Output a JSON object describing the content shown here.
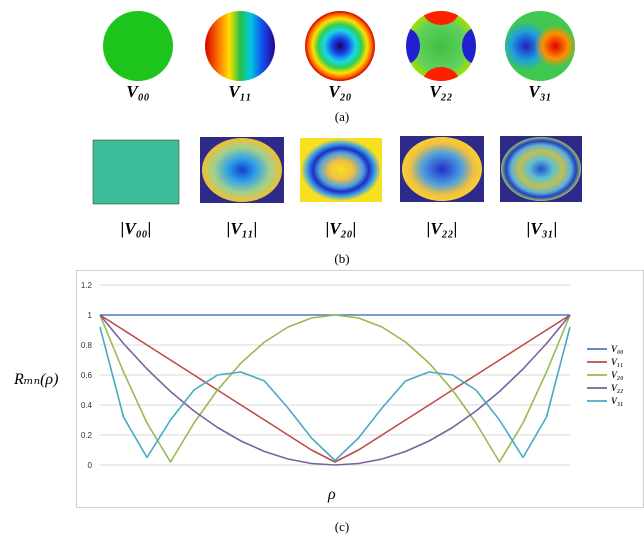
{
  "row_a": {
    "labels": [
      "V00",
      "V11",
      "V20",
      "V22",
      "V31"
    ],
    "label_display": [
      "V₀₀",
      "V₁₁",
      "V₂₀",
      "V₂₂",
      "V₃₁"
    ],
    "caption": "(a)"
  },
  "row_b": {
    "labels": [
      "|V00|",
      "|V11|",
      "|V20|",
      "|V22|",
      "|V31|"
    ],
    "label_display": [
      "|V₀₀|",
      "|V₁₁|",
      "|V₂₀|",
      "|V₂₂|",
      "|V₃₁|"
    ],
    "caption": "(b)"
  },
  "row_c": {
    "caption": "(c)"
  },
  "chart_data": {
    "type": "line",
    "xlabel": "ρ",
    "ylabel": "R_mn(ρ)",
    "ylabel_display": "Rₘₙ(ρ)",
    "ylim": [
      0,
      1.2
    ],
    "yticks": [
      "0",
      "0.2",
      "0.4",
      "0.6",
      "0.8",
      "1",
      "1.2"
    ],
    "grid": true,
    "legend": "right",
    "x": [
      -1,
      -0.9,
      -0.8,
      -0.7,
      -0.6,
      -0.5,
      -0.4,
      -0.3,
      -0.2,
      -0.1,
      0,
      0.1,
      0.2,
      0.3,
      0.4,
      0.5,
      0.6,
      0.7,
      0.8,
      0.9,
      1
    ],
    "series": [
      {
        "name": "V00",
        "label_display": "V₀₀",
        "color": "#4a7ebb",
        "values": [
          1,
          1,
          1,
          1,
          1,
          1,
          1,
          1,
          1,
          1,
          1,
          1,
          1,
          1,
          1,
          1,
          1,
          1,
          1,
          1,
          1
        ]
      },
      {
        "name": "V11",
        "label_display": "V₁₁",
        "color": "#be4b48",
        "values": [
          1,
          0.9,
          0.8,
          0.7,
          0.6,
          0.5,
          0.4,
          0.3,
          0.2,
          0.1,
          0.02,
          0.1,
          0.2,
          0.3,
          0.4,
          0.5,
          0.6,
          0.7,
          0.8,
          0.9,
          1
        ]
      },
      {
        "name": "V20",
        "label_display": "V₂₀",
        "color": "#98b954",
        "values": [
          1,
          0.62,
          0.28,
          0.02,
          0.28,
          0.5,
          0.68,
          0.82,
          0.92,
          0.98,
          1,
          0.98,
          0.92,
          0.82,
          0.68,
          0.5,
          0.28,
          0.02,
          0.28,
          0.62,
          1
        ]
      },
      {
        "name": "V22",
        "label_display": "V₂₂",
        "color": "#7d60a0",
        "values": [
          1,
          0.81,
          0.64,
          0.49,
          0.36,
          0.25,
          0.16,
          0.09,
          0.04,
          0.01,
          0,
          0.01,
          0.04,
          0.09,
          0.16,
          0.25,
          0.36,
          0.49,
          0.64,
          0.81,
          1
        ]
      },
      {
        "name": "V31",
        "label_display": "V₃₁",
        "color": "#46aac5",
        "values": [
          0.92,
          0.32,
          0.05,
          0.3,
          0.5,
          0.6,
          0.62,
          0.56,
          0.38,
          0.18,
          0.03,
          0.18,
          0.38,
          0.56,
          0.62,
          0.6,
          0.5,
          0.3,
          0.05,
          0.32,
          0.92
        ]
      }
    ]
  }
}
